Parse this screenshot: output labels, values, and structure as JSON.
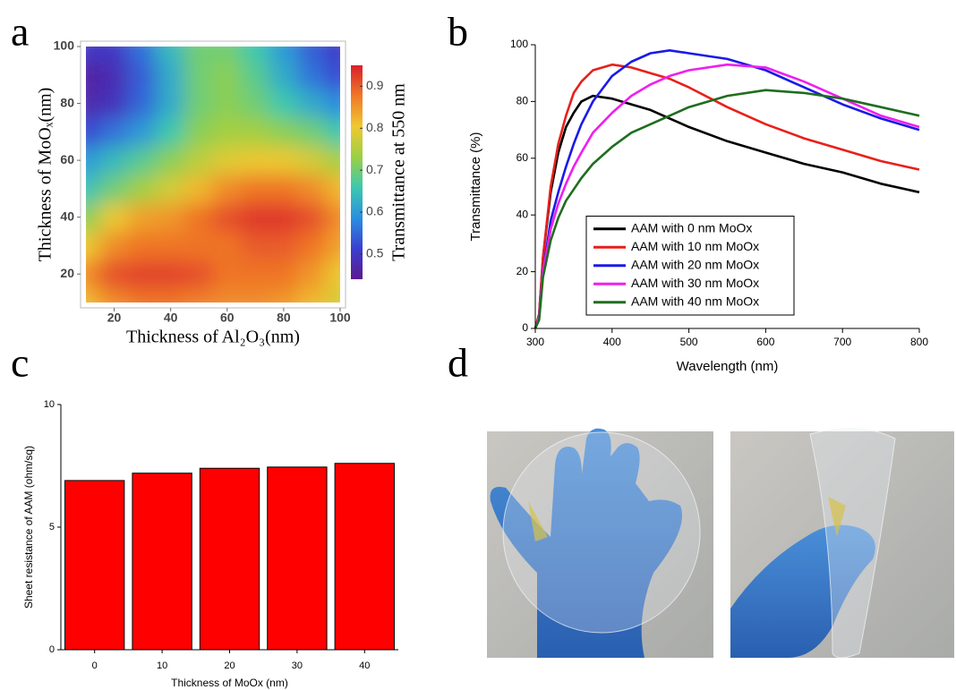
{
  "panel_labels": [
    "a",
    "b",
    "c",
    "d"
  ],
  "chart_data": [
    {
      "type": "heatmap",
      "x_label": "Thickness of Al₂O₃(nm)",
      "y_label": "Thickness of MoOₓ(nm)",
      "colorbar_label": "Transmittance at 550 nm",
      "x": [
        10,
        20,
        30,
        40,
        50,
        60,
        70,
        80,
        90,
        100
      ],
      "y": [
        10,
        20,
        30,
        40,
        50,
        60,
        70,
        80,
        90,
        100
      ],
      "z": [
        [
          0.82,
          0.86,
          0.88,
          0.88,
          0.87,
          0.86,
          0.86,
          0.85,
          0.82,
          0.78
        ],
        [
          0.86,
          0.91,
          0.92,
          0.92,
          0.91,
          0.88,
          0.88,
          0.88,
          0.85,
          0.8
        ],
        [
          0.8,
          0.86,
          0.88,
          0.88,
          0.88,
          0.88,
          0.9,
          0.9,
          0.88,
          0.84
        ],
        [
          0.72,
          0.8,
          0.84,
          0.85,
          0.88,
          0.91,
          0.93,
          0.93,
          0.91,
          0.86
        ],
        [
          0.65,
          0.7,
          0.74,
          0.78,
          0.82,
          0.86,
          0.88,
          0.88,
          0.86,
          0.82
        ],
        [
          0.6,
          0.64,
          0.68,
          0.72,
          0.76,
          0.79,
          0.8,
          0.8,
          0.78,
          0.74
        ],
        [
          0.52,
          0.56,
          0.6,
          0.66,
          0.72,
          0.74,
          0.74,
          0.72,
          0.7,
          0.66
        ],
        [
          0.47,
          0.49,
          0.55,
          0.62,
          0.7,
          0.72,
          0.7,
          0.66,
          0.62,
          0.58
        ],
        [
          0.46,
          0.48,
          0.54,
          0.62,
          0.7,
          0.72,
          0.68,
          0.62,
          0.56,
          0.52
        ],
        [
          0.5,
          0.5,
          0.56,
          0.64,
          0.7,
          0.7,
          0.66,
          0.6,
          0.54,
          0.5
        ]
      ],
      "xlim": [
        10,
        100
      ],
      "ylim": [
        10,
        100
      ],
      "xticks": [
        20,
        40,
        60,
        80,
        100
      ],
      "yticks": [
        20,
        40,
        60,
        80,
        100
      ],
      "clim": [
        0.44,
        0.95
      ],
      "cticks": [
        0.5,
        0.6,
        0.7,
        0.8,
        0.9
      ],
      "colormap": [
        "#5b1a8f",
        "#3a3fd0",
        "#2a8fe0",
        "#3cc8b0",
        "#9ad044",
        "#f0c830",
        "#f07828",
        "#d8202a"
      ]
    },
    {
      "type": "line",
      "x_label": "Wavelength (nm)",
      "y_label": "Transmittance (%)",
      "x": [
        300,
        305,
        310,
        320,
        330,
        340,
        350,
        360,
        375,
        400,
        425,
        450,
        475,
        500,
        550,
        600,
        650,
        700,
        750,
        800
      ],
      "series": [
        {
          "name": "AAM with 0 nm MoOx",
          "color": "#000000",
          "values": [
            0,
            5,
            25,
            48,
            62,
            71,
            76,
            80,
            82,
            81,
            79,
            77,
            74,
            71,
            66,
            62,
            58,
            55,
            51,
            48
          ]
        },
        {
          "name": "AAM with 10 nm MoOx",
          "color": "#e8201a",
          "values": [
            0,
            5,
            25,
            50,
            65,
            75,
            83,
            87,
            91,
            93,
            92,
            90,
            88,
            85,
            78,
            72,
            67,
            63,
            59,
            56
          ]
        },
        {
          "name": "AAM with 20 nm MoOx",
          "color": "#1a1ae8",
          "values": [
            0,
            4,
            20,
            38,
            48,
            57,
            65,
            72,
            80,
            89,
            94,
            97,
            98,
            97,
            95,
            91,
            85,
            79,
            74,
            70
          ]
        },
        {
          "name": "AAM with 30 nm MoOx",
          "color": "#f01ef0",
          "values": [
            0,
            4,
            20,
            35,
            44,
            51,
            57,
            62,
            69,
            76,
            82,
            86,
            89,
            91,
            93,
            92,
            87,
            81,
            75,
            71
          ]
        },
        {
          "name": "AAM with 40 nm MoOx",
          "color": "#1e6e1e",
          "values": [
            0,
            3,
            18,
            31,
            39,
            45,
            49,
            53,
            58,
            64,
            69,
            72,
            75,
            78,
            82,
            84,
            83,
            81,
            78,
            75
          ]
        }
      ],
      "xlim": [
        300,
        800
      ],
      "ylim": [
        0,
        100
      ],
      "xticks": [
        300,
        400,
        500,
        600,
        700,
        800
      ],
      "yticks": [
        0,
        20,
        40,
        60,
        80,
        100
      ],
      "legend": "lower center"
    },
    {
      "type": "bar",
      "x_label": "Thickness of MoOx (nm)",
      "y_label": "Sheet resistance of AAM (ohm/sq)",
      "categories": [
        "0",
        "10",
        "20",
        "30",
        "40"
      ],
      "values": [
        6.9,
        7.2,
        7.4,
        7.45,
        7.6
      ],
      "color": "#ff0000",
      "ylim": [
        0,
        10
      ],
      "yticks": [
        0,
        5,
        10
      ]
    }
  ]
}
